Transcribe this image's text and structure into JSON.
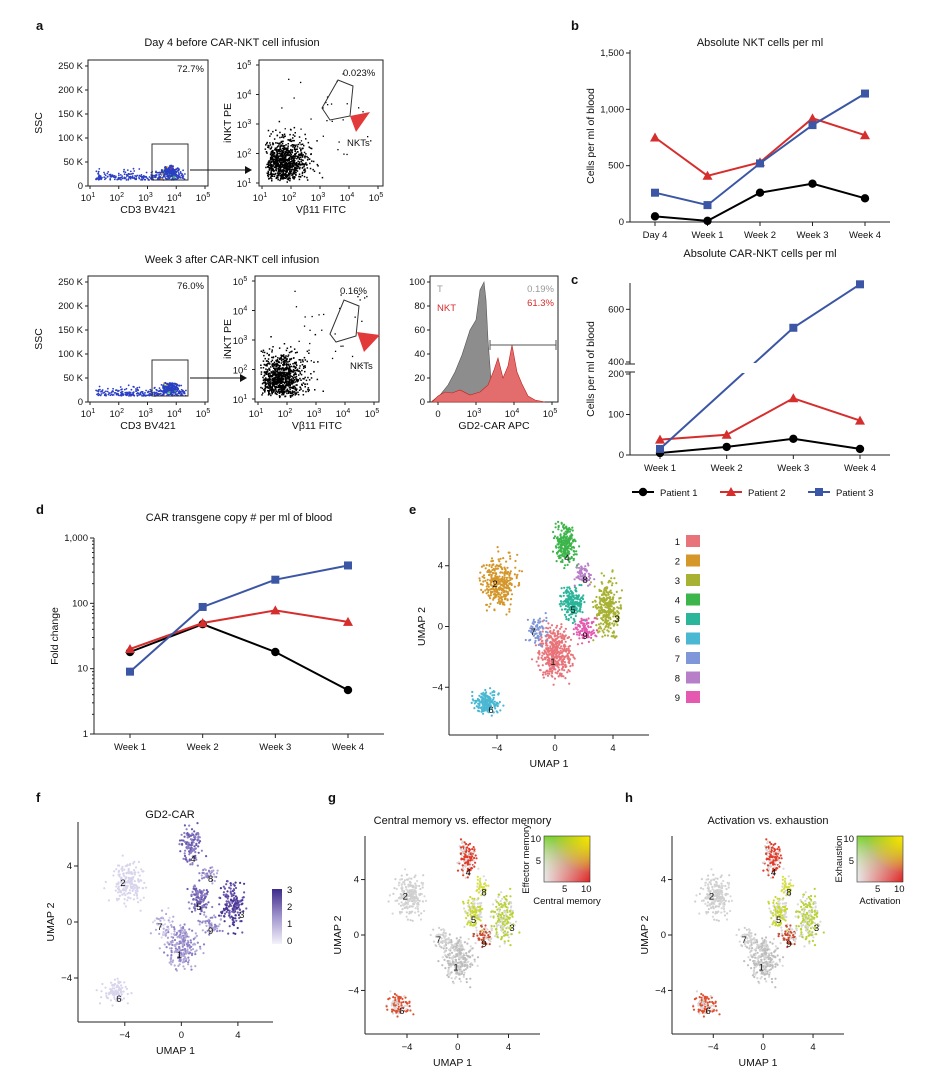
{
  "panels": {
    "a": "a",
    "b": "b",
    "c": "c",
    "d": "d",
    "e": "e",
    "f": "f",
    "g": "g",
    "h": "h"
  },
  "colors": {
    "patient1": "#000000",
    "patient2": "#d62d2d",
    "patient3": "#3b56a4",
    "flow_dot": "#2b3fc4",
    "nkt_arrow": "#e23a3a"
  },
  "flow": {
    "row1_title": "Day 4 before CAR-NKT cell infusion",
    "row2_title": "Week 3 after CAR-NKT cell infusion",
    "ssc_label": "SSC",
    "cd3_label": "CD3 BV421",
    "inkt_label": "iNKT PE",
    "vb11_label": "Vβ11 FITC",
    "gd2_label": "GD2-CAR APC",
    "ssc_ticks": [
      "250 K",
      "200 K",
      "150 K",
      "100 K",
      "50 K",
      "0"
    ],
    "row1_cd3_pct": "72.7%",
    "row1_nkt_pct": "0.023%",
    "row2_cd3_pct": "76.0%",
    "row2_nkt_pct": "0.16%",
    "nkts_label": "NKTs",
    "hist_T_label": "T",
    "hist_NKT_label": "NKT",
    "hist_T_pct": "0.19%",
    "hist_NKT_pct": "61.3%",
    "hist_y_ticks": [
      "100",
      "80",
      "60",
      "40",
      "20",
      "0"
    ]
  },
  "chart_data": [
    {
      "type": "line",
      "panel": "b",
      "title": "Absolute NKT cells per ml",
      "ylabel": "Cells per ml of blood",
      "categories": [
        "Day 4",
        "Week 1",
        "Week 2",
        "Week 3",
        "Week 4"
      ],
      "ylim": [
        0,
        1500
      ],
      "yticks": [
        0,
        500,
        1000,
        1500
      ],
      "ytick_labels": [
        "0",
        "500",
        "1,000",
        "1,500"
      ],
      "series": [
        {
          "name": "Patient 1",
          "values": [
            50,
            10,
            260,
            340,
            210
          ]
        },
        {
          "name": "Patient 2",
          "values": [
            750,
            410,
            530,
            920,
            770
          ]
        },
        {
          "name": "Patient 3",
          "values": [
            260,
            150,
            520,
            860,
            1140
          ]
        }
      ]
    },
    {
      "type": "line",
      "panel": "c",
      "title": "Absolute CAR-NKT cells per ml",
      "ylabel": "Cells per ml of blood",
      "categories": [
        "Week 1",
        "Week 2",
        "Week 3",
        "Week 4"
      ],
      "axis_break": [
        200,
        400
      ],
      "ylim": [
        0,
        700
      ],
      "yticks": [
        0,
        100,
        200,
        400,
        600
      ],
      "ytick_labels": [
        "0",
        "100",
        "200",
        "400",
        "600"
      ],
      "series": [
        {
          "name": "Patient 1",
          "values": [
            5,
            20,
            40,
            15
          ]
        },
        {
          "name": "Patient 2",
          "values": [
            38,
            50,
            140,
            85
          ]
        },
        {
          "name": "Patient 3",
          "values": [
            15,
            null,
            530,
            695
          ]
        }
      ],
      "legend": [
        "Patient 1",
        "Patient 2",
        "Patient 3"
      ]
    },
    {
      "type": "line",
      "panel": "d",
      "title": "CAR transgene copy # per ml of blood",
      "ylabel": "Fold change",
      "categories": [
        "Week 1",
        "Week 2",
        "Week 3",
        "Week 4"
      ],
      "yscale": "log",
      "ylim": [
        1,
        1000
      ],
      "ytick_labels": [
        "1",
        "10",
        "100",
        "1,000"
      ],
      "series": [
        {
          "name": "Patient 1",
          "values": [
            18,
            48,
            18,
            4.7
          ]
        },
        {
          "name": "Patient 2",
          "values": [
            20,
            50,
            78,
            52
          ]
        },
        {
          "name": "Patient 3",
          "values": [
            9,
            88,
            230,
            380
          ]
        }
      ]
    },
    {
      "type": "scatter",
      "panel": "e",
      "xlabel": "UMAP 1",
      "ylabel": "UMAP 2",
      "xticks": [
        "−4",
        "0",
        "4"
      ],
      "yticks": [
        "4",
        "0",
        "−4"
      ],
      "clusters": [
        {
          "id": "1",
          "color": "#e9737a"
        },
        {
          "id": "2",
          "color": "#d5962a"
        },
        {
          "id": "3",
          "color": "#a8b232"
        },
        {
          "id": "4",
          "color": "#3cb54a"
        },
        {
          "id": "5",
          "color": "#2bb59a"
        },
        {
          "id": "6",
          "color": "#4ab7d3"
        },
        {
          "id": "7",
          "color": "#7f96d8"
        },
        {
          "id": "8",
          "color": "#b77fc8"
        },
        {
          "id": "9",
          "color": "#e559b0"
        }
      ]
    },
    {
      "type": "scatter",
      "panel": "f",
      "title": "GD2-CAR",
      "xlabel": "UMAP 1",
      "ylabel": "UMAP 2",
      "colorbar_ticks": [
        "3",
        "2",
        "1",
        "0"
      ]
    },
    {
      "type": "scatter",
      "panel": "g",
      "title": "Central memory vs. effector memory",
      "xlabel": "UMAP 1",
      "ylabel": "UMAP 2",
      "legend_xlabel": "Central memory",
      "legend_ylabel": "Effector memory",
      "legend_xticks": [
        "5",
        "10"
      ],
      "legend_yticks": [
        "10",
        "5"
      ]
    },
    {
      "type": "scatter",
      "panel": "h",
      "title": "Activation vs. exhaustion",
      "xlabel": "UMAP 1",
      "ylabel": "UMAP 2",
      "legend_xlabel": "Activation",
      "legend_ylabel": "Exhaustion",
      "legend_xticks": [
        "5",
        "10"
      ],
      "legend_yticks": [
        "10",
        "5"
      ]
    }
  ]
}
